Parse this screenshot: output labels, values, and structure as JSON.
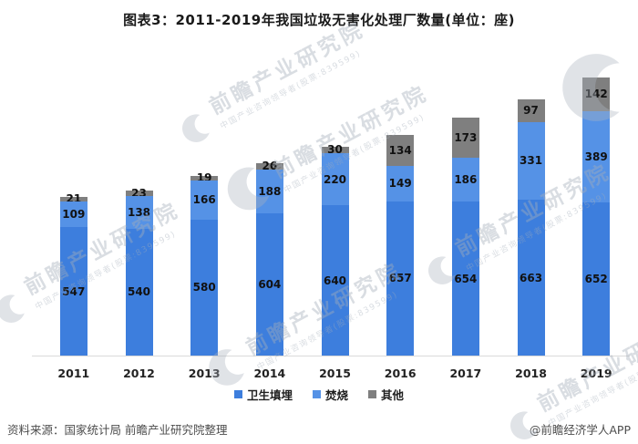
{
  "header": {
    "title": "图表3：2011-2019年我国垃圾无害化处理厂数量(单位：座)"
  },
  "chart_data": {
    "type": "bar",
    "stacked": true,
    "title": "图表3：2011-2019年我国垃圾无害化处理厂数量(单位：座)",
    "unit": "座",
    "categories": [
      "2011",
      "2012",
      "2013",
      "2014",
      "2015",
      "2016",
      "2017",
      "2018",
      "2019"
    ],
    "series": [
      {
        "name": "卫生填埋",
        "color": "#3d7edd",
        "values": [
          547,
          540,
          580,
          604,
          640,
          657,
          654,
          663,
          652
        ]
      },
      {
        "name": "焚烧",
        "color": "#5592e6",
        "values": [
          109,
          138,
          166,
          188,
          220,
          149,
          186,
          331,
          389
        ]
      },
      {
        "name": "其他",
        "color": "#7f7f7f",
        "values": [
          21,
          23,
          19,
          26,
          30,
          134,
          173,
          97,
          142
        ]
      }
    ],
    "value_labels": true,
    "grid": false,
    "y_axis_visible": false,
    "ylim": [
      0,
      1280
    ],
    "legend_position": "bottom"
  },
  "watermark": {
    "text": "前瞻产业研究院",
    "subtext": "中国产业咨询领导者(股票:839599)"
  },
  "footer": {
    "source": "资料来源：国家统计局 前瞻产业研究院整理",
    "credit": "@前瞻经济学人APP"
  }
}
